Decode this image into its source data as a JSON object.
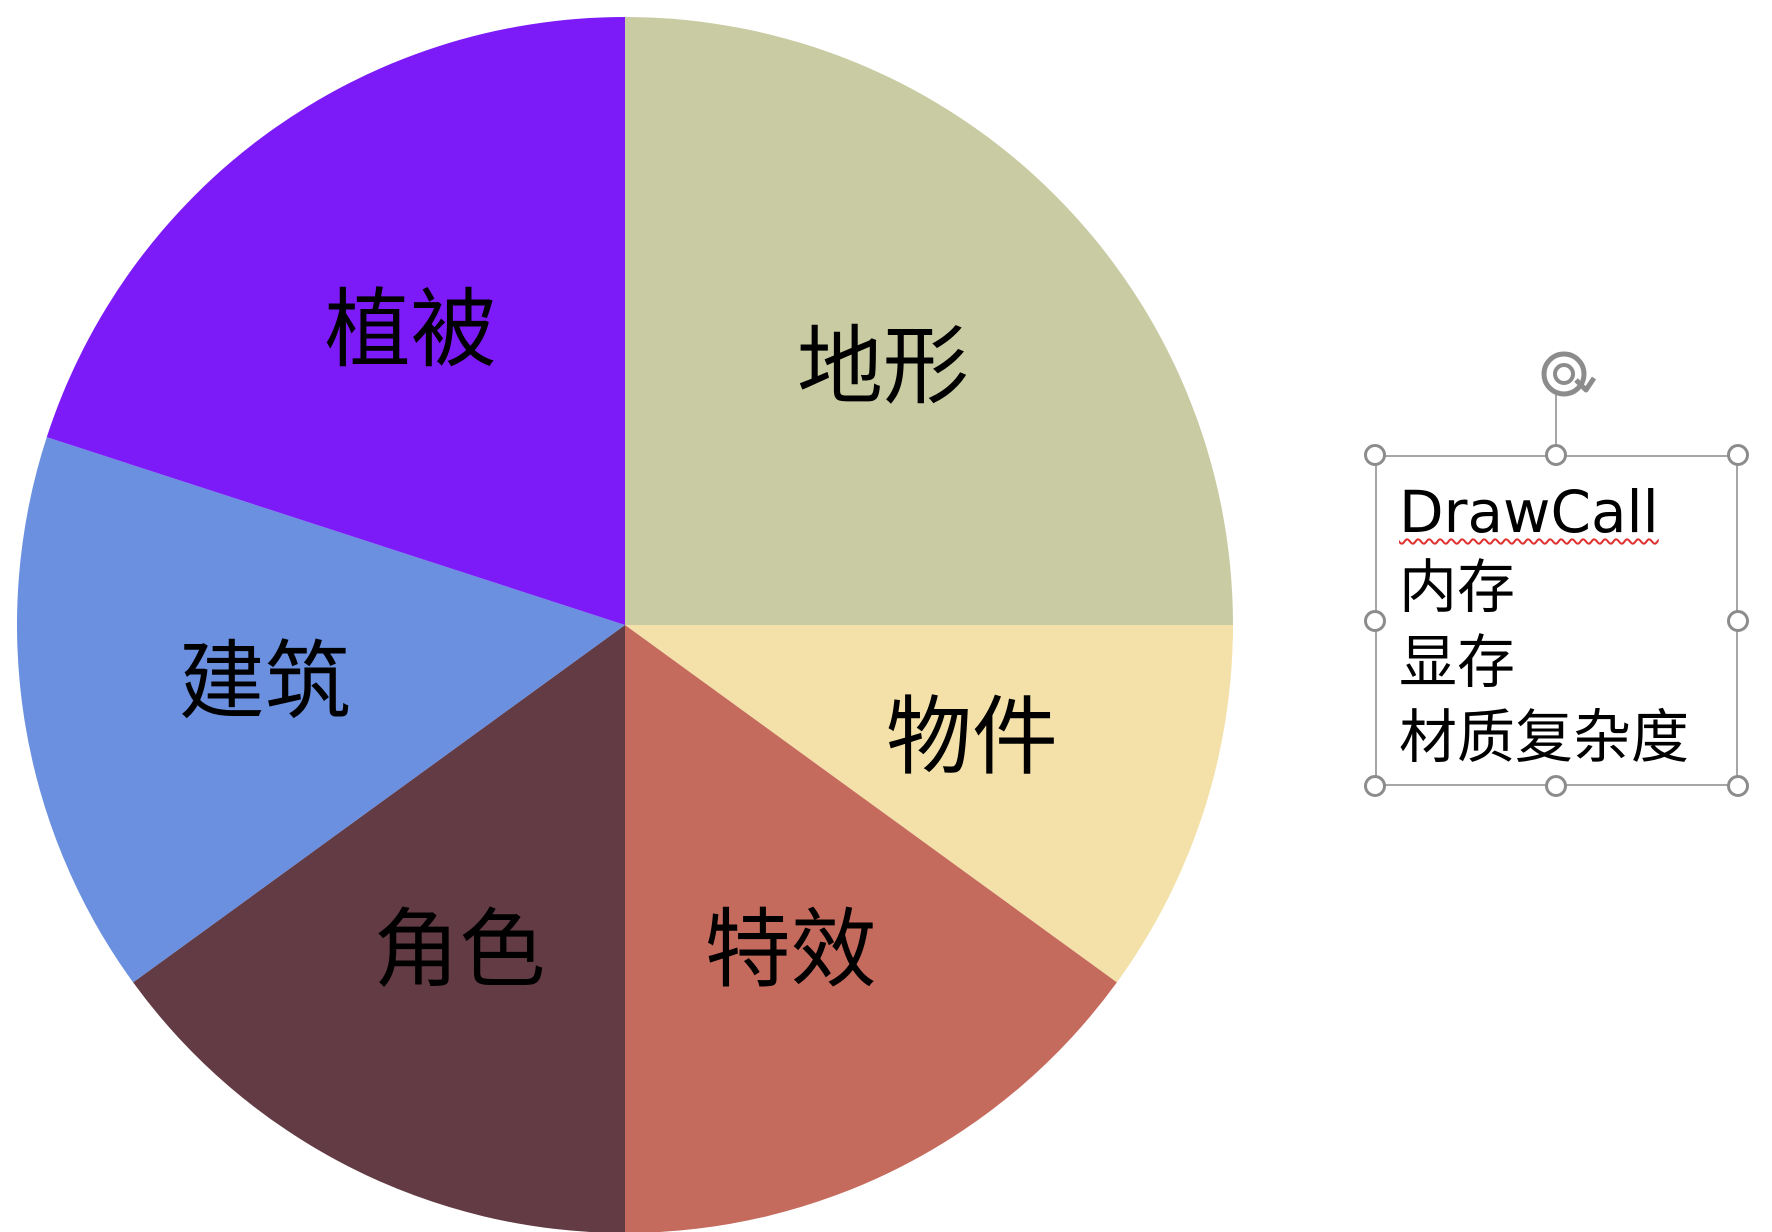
{
  "chart_data": {
    "type": "pie",
    "title": "",
    "start": "12 o'clock, clockwise",
    "slices": [
      {
        "label": "地形",
        "value": 25,
        "color": "#c9cba3"
      },
      {
        "label": "物件",
        "value": 10,
        "color": "#f3e1a9"
      },
      {
        "label": "特效",
        "value": 15,
        "color": "#c56b5d"
      },
      {
        "label": "角色",
        "value": 15,
        "color": "#633b45"
      },
      {
        "label": "建筑",
        "value": 15,
        "color": "#6a90df"
      },
      {
        "label": "植被",
        "value": 20,
        "color": "#7d1bf8"
      }
    ]
  },
  "textbox": {
    "lines": [
      "DrawCall",
      "内存",
      "显存",
      "材质复杂度"
    ],
    "selected": true,
    "border_color": "#a6a6a6",
    "handle_color": "#8c8c8c",
    "spellcheck_color": "#e03030"
  }
}
